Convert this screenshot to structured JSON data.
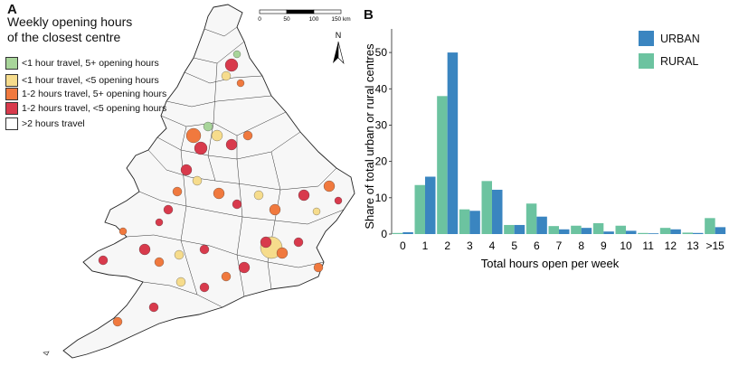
{
  "panel_a": {
    "label": "A",
    "legend_title_line1": "Weekly opening hours",
    "legend_title_line2": "of the closest centre",
    "legend_items": [
      {
        "label": "<1 hour travel, 5+ opening hours",
        "color": "#a8d59a"
      },
      {
        "label": "<1 hour travel, <5 opening hours",
        "color": "#f6dc8c"
      },
      {
        "label": "1-2 hours travel, 5+ opening hours",
        "color": "#f0793e"
      },
      {
        "label": "1-2 hours travel, <5 opening hours",
        "color": "#d83a4c"
      },
      {
        "label": ">2 hours travel",
        "color": "#ffffff"
      }
    ],
    "scale_bar": {
      "ticks": [
        "0",
        "50",
        "100",
        "150 km"
      ]
    },
    "north_label": "N"
  },
  "chart_data": {
    "type": "bar",
    "label": "B",
    "xlabel": "Total hours open per week",
    "ylabel": "Share of total urban or rural centres",
    "ylim": [
      0,
      55
    ],
    "yticks": [
      0,
      10,
      20,
      30,
      40,
      50
    ],
    "categories": [
      "0",
      "1",
      "2",
      "3",
      "4",
      "5",
      "6",
      "7",
      "8",
      "9",
      "10",
      "11",
      "12",
      "13",
      ">15"
    ],
    "series": [
      {
        "name": "RURAL",
        "color": "#6cc3a0",
        "values": [
          0.3,
          13.5,
          38,
          6.8,
          14.6,
          2.5,
          8.4,
          2.2,
          2.3,
          3.0,
          2.3,
          0.3,
          1.7,
          0.4,
          4.4
        ]
      },
      {
        "name": "URBAN",
        "color": "#3a85c0",
        "values": [
          0.5,
          15.8,
          50,
          6.4,
          12.2,
          2.5,
          4.8,
          1.3,
          1.7,
          0.7,
          0.9,
          0.2,
          1.3,
          0.3,
          1.9
        ]
      }
    ],
    "legend_order": [
      "URBAN",
      "RURAL"
    ],
    "legend_position": "top-right"
  }
}
